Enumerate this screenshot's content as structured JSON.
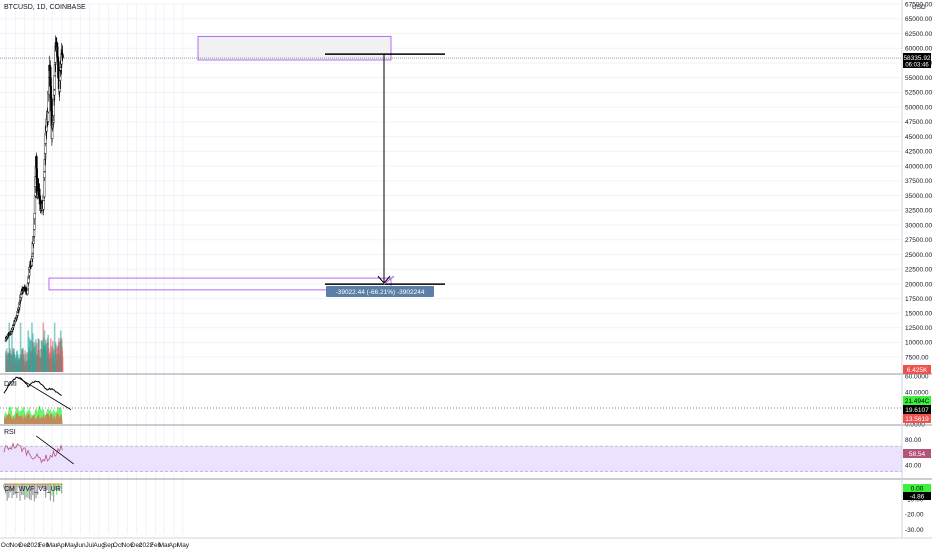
{
  "header": {
    "title": "BTCUSD, 1D, COINBASE",
    "currency": "USD"
  },
  "colors": {
    "up": "#26a69a",
    "down": "#ef5350",
    "candle": "#000000",
    "box": "#b36cf2",
    "plus_di": "#3cf03c",
    "minus_di": "#ef5350",
    "adx": "#000000",
    "rsi": "#b3557a",
    "rsi_band": "#ece2ff",
    "badge_blue": "#5b7fa6",
    "price_tag": "#000000"
  },
  "price_badge": {
    "price": "58335.92",
    "countdown": "06:03:46"
  },
  "volume_badge": "6.425K",
  "measure_label": "-39022.44 (-66.21%) -3902244",
  "dmi_badges": [
    "21.494C",
    "19.6107",
    "13.5619"
  ],
  "rsi_badge": "58.54",
  "wvf_badges": [
    "0.00",
    "-4.86"
  ],
  "chart_data": [
    {
      "pane": "price",
      "type": "candlestick",
      "title": "BTCUSD, 1D, COINBASE",
      "x_tick_labels": [
        "Oct",
        "Nov",
        "Dec",
        "2021",
        "Feb",
        "Mar",
        "Apr",
        "May",
        "Jun",
        "Jul",
        "Aug",
        "Sep",
        "Oct",
        "Nov",
        "Dec",
        "2022",
        "Feb",
        "Mar",
        "Apr",
        "May"
      ],
      "y_tick_labels": [
        "67500.00",
        "65000.00",
        "62500.00",
        "60000.00",
        "57500.00",
        "55000.00",
        "52500.00",
        "50000.00",
        "47500.00",
        "45000.00",
        "42500.00",
        "40000.00",
        "37500.00",
        "35000.00",
        "32500.00",
        "30000.00",
        "27500.00",
        "25000.00",
        "22500.00",
        "20000.00",
        "17500.00",
        "15000.00",
        "12500.00",
        "10000.00",
        "7500.00"
      ],
      "ylim": [
        5000,
        68500
      ],
      "last_price": 58335.92,
      "resistance_zone": [
        58000,
        62000
      ],
      "support_zone": [
        19000,
        21000
      ],
      "projection": {
        "from": 59000,
        "to": 19978
      },
      "close_path": [
        [
          "2020-10-01",
          10600
        ],
        [
          "2020-10-10",
          11300
        ],
        [
          "2020-10-20",
          11900
        ],
        [
          "2020-11-01",
          13800
        ],
        [
          "2020-11-10",
          15300
        ],
        [
          "2020-11-20",
          18400
        ],
        [
          "2020-11-30",
          19400
        ],
        [
          "2020-12-10",
          18300
        ],
        [
          "2020-12-17",
          23000
        ],
        [
          "2020-12-24",
          23700
        ],
        [
          "2021-01-01",
          29300
        ],
        [
          "2021-01-08",
          40800
        ],
        [
          "2021-01-11",
          35500
        ],
        [
          "2021-01-15",
          36800
        ],
        [
          "2021-01-22",
          32900
        ],
        [
          "2021-01-28",
          33400
        ],
        [
          "2021-02-01",
          33500
        ],
        [
          "2021-02-08",
          46300
        ],
        [
          "2021-02-15",
          48700
        ],
        [
          "2021-02-21",
          57500
        ],
        [
          "2021-02-28",
          45200
        ],
        [
          "2021-03-05",
          48800
        ],
        [
          "2021-03-13",
          61200
        ],
        [
          "2021-03-18",
          58200
        ],
        [
          "2021-03-25",
          52500
        ],
        [
          "2021-03-29",
          57600
        ],
        [
          "2021-04-02",
          59000
        ],
        [
          "2021-04-04",
          58336
        ]
      ]
    },
    {
      "pane": "volume",
      "type": "bar",
      "note": "volume pane, bars colored by candle direction",
      "ylim": [
        0,
        40000
      ]
    },
    {
      "pane": "dmi",
      "type": "area",
      "title": "DMI",
      "y_tick_labels": [
        "60.0000",
        "40.0000",
        "0.0000"
      ],
      "ylim": [
        0,
        60
      ],
      "adx_peaks": [
        [
          "2020-11-10",
          58
        ],
        [
          "2021-01-08",
          53
        ],
        [
          "2021-02-21",
          44
        ],
        [
          "2021-03-13",
          38
        ]
      ],
      "trendline": [
        [
          "2020-11-10",
          58
        ],
        [
          "2021-05-01",
          18
        ]
      ]
    },
    {
      "pane": "rsi",
      "type": "line",
      "title": "RSI",
      "y_tick_labels": [
        "80.00",
        "40.00"
      ],
      "ylim": [
        20,
        100
      ],
      "band": [
        30,
        70
      ],
      "trendline": [
        [
          "2021-01-08",
          86
        ],
        [
          "2021-05-10",
          42
        ]
      ]
    },
    {
      "pane": "wvf",
      "type": "bar",
      "title": "CM_WVF_V3_UR",
      "y_tick_labels": [
        "-10.00",
        "-20.00",
        "-30.00"
      ],
      "ylim": [
        -33,
        2
      ]
    }
  ]
}
